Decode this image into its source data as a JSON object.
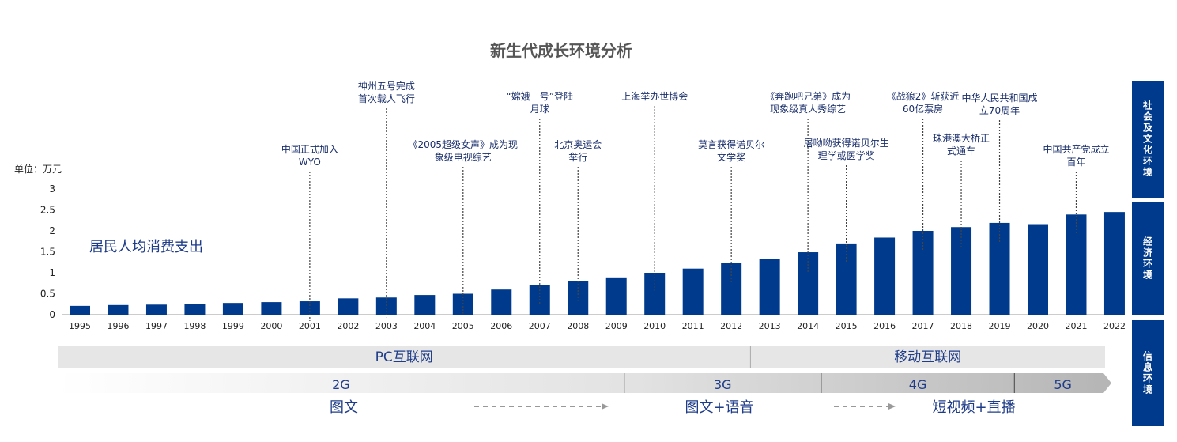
{
  "title": "新生代成长环境分析",
  "side_panels": [
    {
      "label": "社会及文化环境"
    },
    {
      "label": "经济环境"
    },
    {
      "label": "信息环境"
    }
  ],
  "chart_data": {
    "type": "bar",
    "unit_label": "单位：万元",
    "series_label": "居民人均消费支出",
    "categories": [
      "1995",
      "1996",
      "1997",
      "1998",
      "1999",
      "2000",
      "2001",
      "2002",
      "2003",
      "2004",
      "2005",
      "2006",
      "2007",
      "2008",
      "2009",
      "2010",
      "2011",
      "2012",
      "2013",
      "2014",
      "2015",
      "2016",
      "2017",
      "2018",
      "2019",
      "2020",
      "2021",
      "2022"
    ],
    "values": [
      0.21,
      0.23,
      0.24,
      0.26,
      0.28,
      0.3,
      0.32,
      0.39,
      0.41,
      0.47,
      0.5,
      0.6,
      0.71,
      0.8,
      0.89,
      1.0,
      1.1,
      1.24,
      1.33,
      1.49,
      1.7,
      1.84,
      2.0,
      2.09,
      2.19,
      2.16,
      2.39,
      2.45
    ],
    "yticks": [
      "0",
      "0.5",
      "1",
      "1.5",
      "2",
      "2.5",
      "3"
    ],
    "ylim": [
      0,
      3
    ],
    "bar_color": "#003a8c",
    "events": [
      {
        "year": "2001",
        "lines": [
          "中国正式加入",
          "WYO"
        ]
      },
      {
        "year": "2003",
        "lines": [
          "神州五号完成",
          "首次载人飞行"
        ]
      },
      {
        "year": "2005",
        "lines": [
          "《2005超级女声》成为现",
          "象级电视综艺"
        ]
      },
      {
        "year": "2007",
        "lines": [
          "“嫦娥一号”登陆",
          "月球"
        ]
      },
      {
        "year": "2008",
        "lines": [
          "北京奥运会",
          "举行"
        ]
      },
      {
        "year": "2010",
        "lines": [
          "上海举办世博会"
        ]
      },
      {
        "year": "2012",
        "lines": [
          "莫言获得诺贝尔",
          "文学奖"
        ]
      },
      {
        "year": "2014",
        "lines": [
          "《奔跑吧兄弟》成为",
          "现象级真人秀综艺"
        ]
      },
      {
        "year": "2015",
        "lines": [
          "屠呦呦获得诺贝尔生",
          "理学或医学奖"
        ]
      },
      {
        "year": "2017",
        "lines": [
          "《战狼2》斩获近",
          "60亿票房"
        ]
      },
      {
        "year": "2018",
        "lines": [
          "珠港澳大桥正",
          "式通车"
        ]
      },
      {
        "year": "2019",
        "lines": [
          "中华人民共和国成",
          "立70周年"
        ]
      },
      {
        "year": "2021",
        "lines": [
          "中国共产党成立",
          "百年"
        ]
      }
    ]
  },
  "info_env": {
    "internet": [
      {
        "label": "PC互联网",
        "from": "1995",
        "to": "2012"
      },
      {
        "label": "移动互联网",
        "from": "2013",
        "to": "2022"
      }
    ],
    "network": [
      {
        "label": "2G",
        "from": "1995",
        "to": "2009"
      },
      {
        "label": "3G",
        "from": "2009",
        "to": "2013"
      },
      {
        "label": "4G",
        "from": "2013",
        "to": "2018"
      },
      {
        "label": "5G",
        "from": "2018",
        "to": "2022"
      }
    ],
    "content": [
      "图文",
      "图文+语音",
      "短视频+直播"
    ]
  }
}
